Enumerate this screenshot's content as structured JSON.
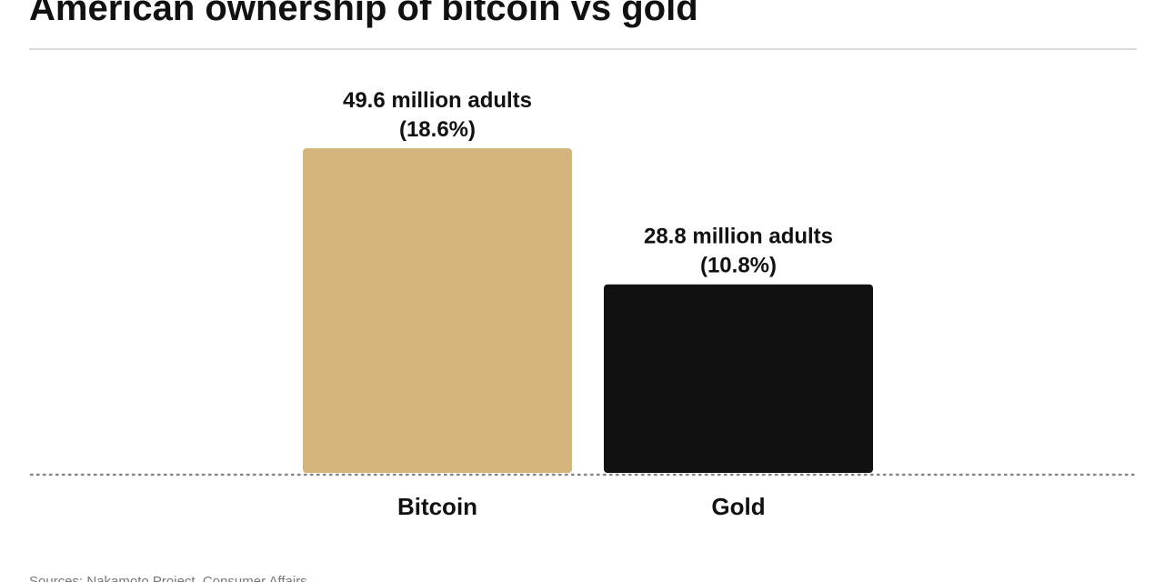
{
  "chart_data": {
    "type": "bar",
    "title": "American ownership of bitcoin vs gold",
    "categories": [
      "Bitcoin",
      "Gold"
    ],
    "values": [
      49.6,
      28.8
    ],
    "value_labels": [
      "49.6 million adults",
      "28.8 million adults"
    ],
    "percent_values": [
      18.6,
      10.8
    ],
    "percent_labels": [
      "(18.6%)",
      "(10.8%)"
    ],
    "colors": [
      "#d4b57c",
      "#111111"
    ],
    "source": "Sources: Nakamoto Project, Consumer Affairs"
  }
}
